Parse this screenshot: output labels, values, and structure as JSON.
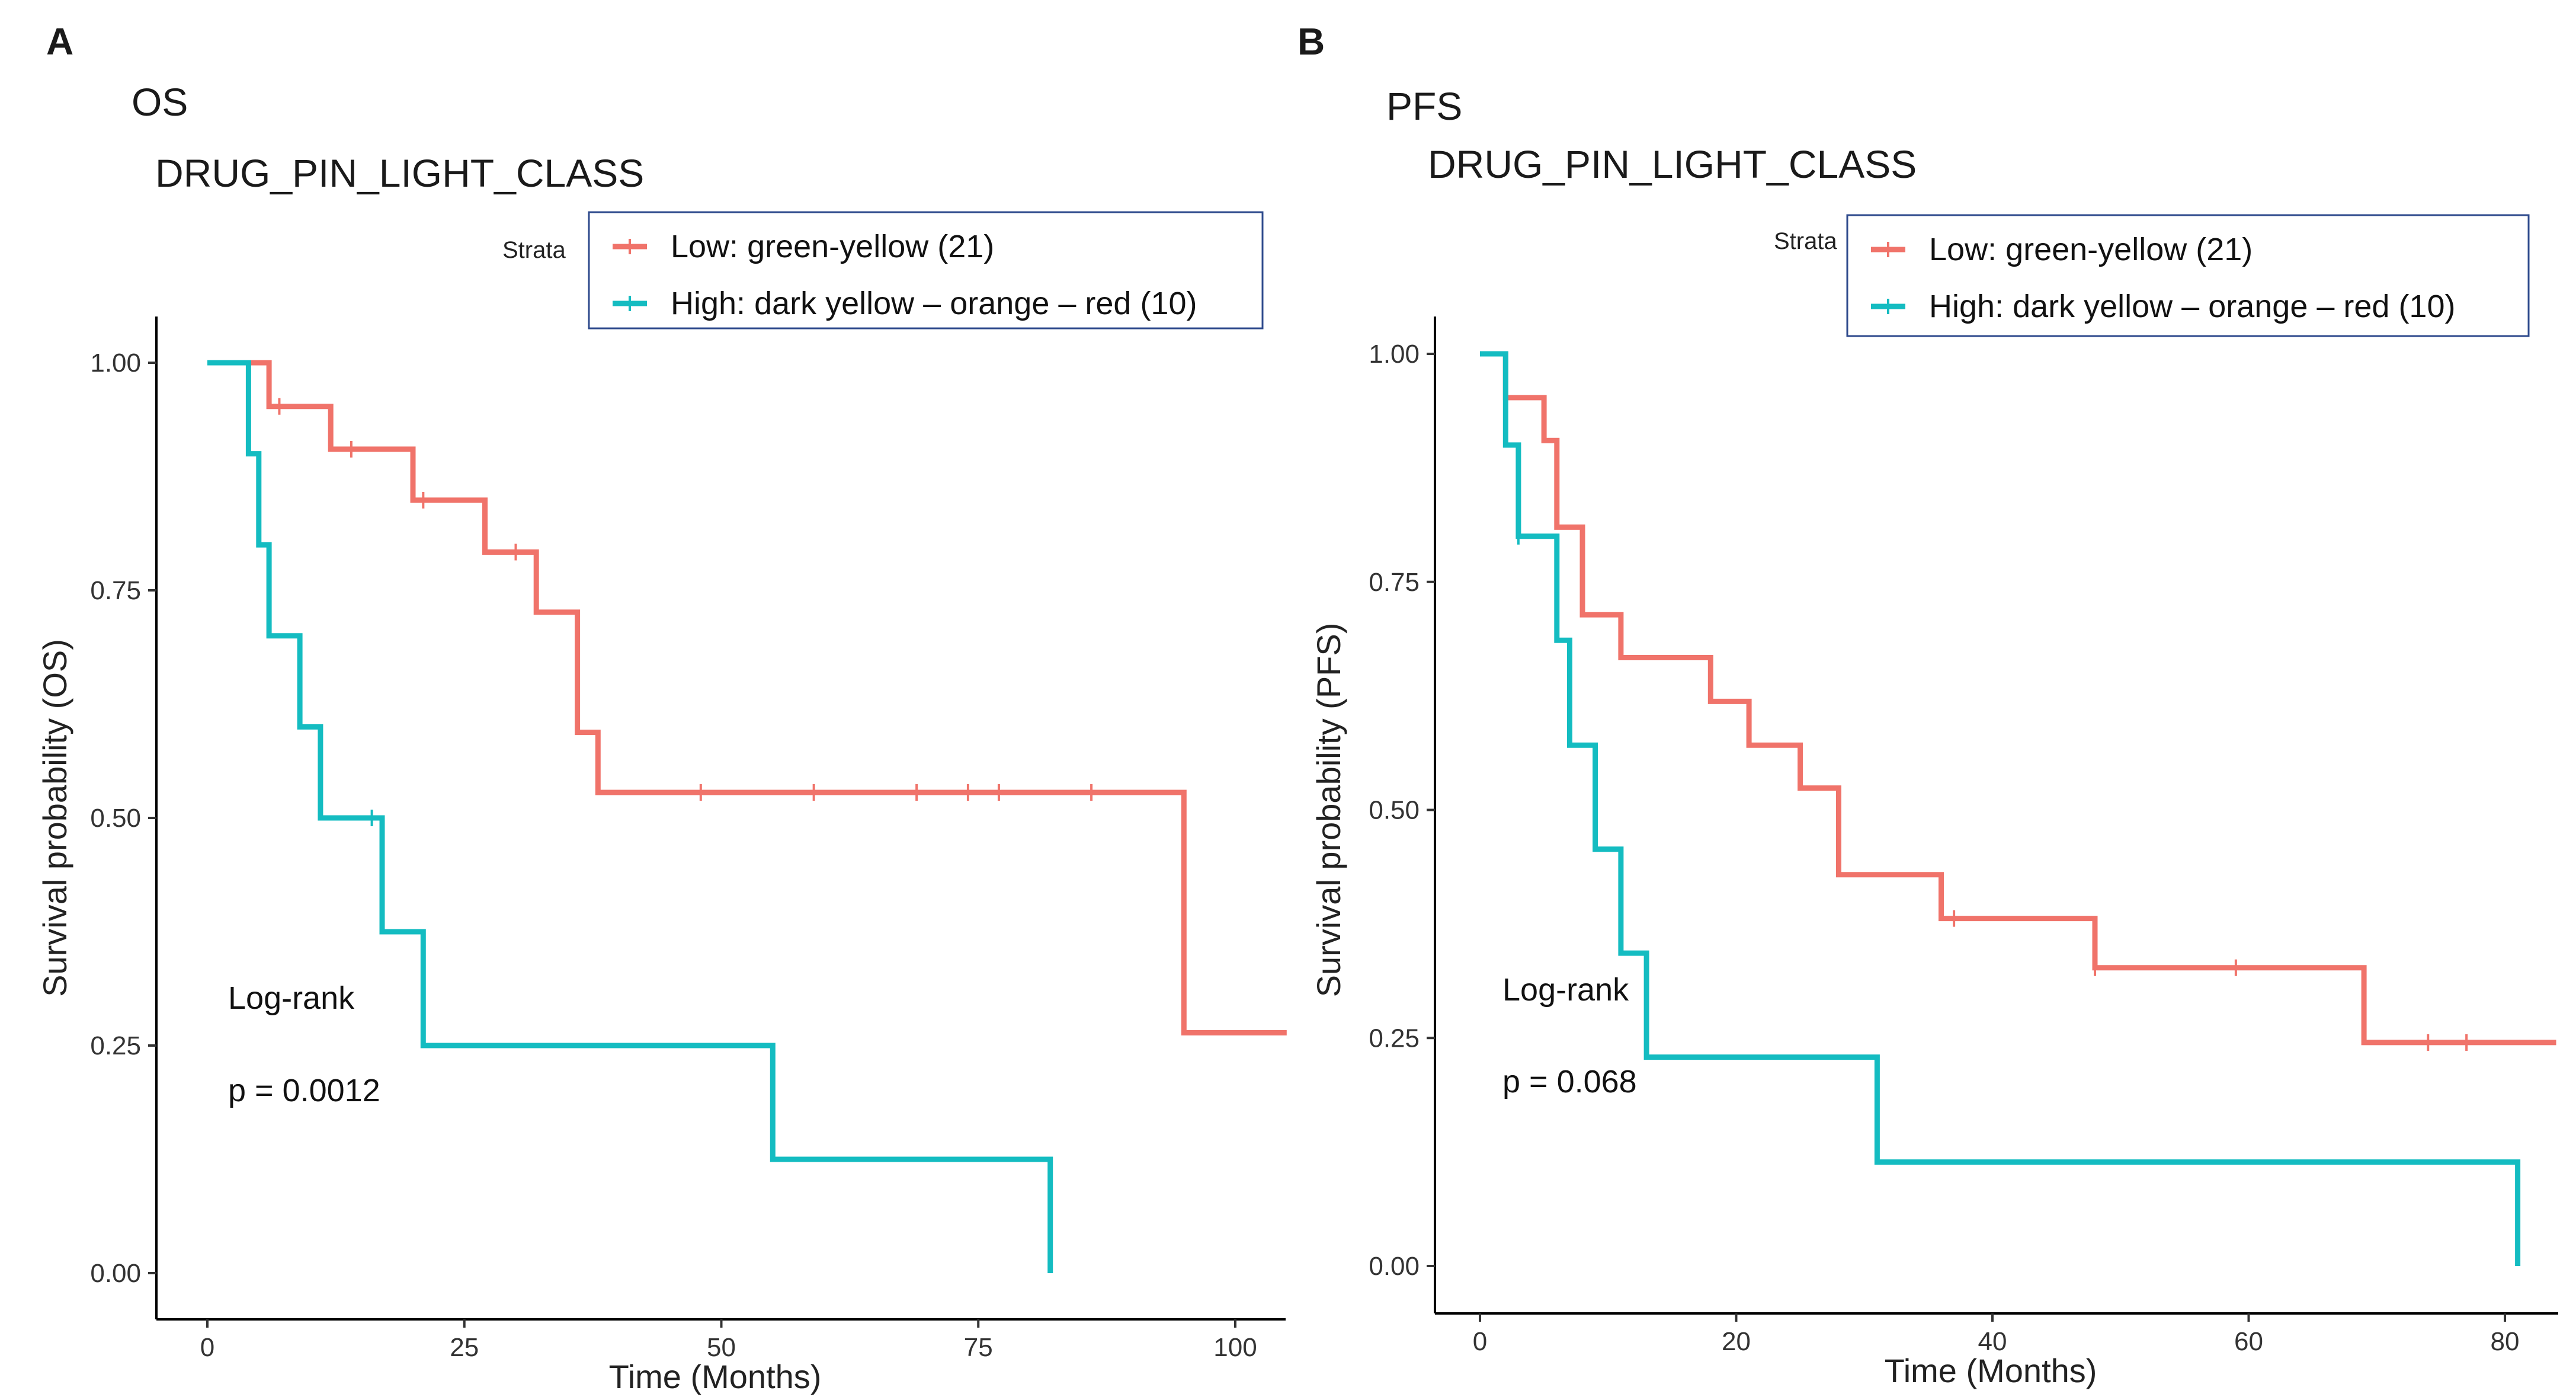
{
  "colors": {
    "low": "#F0736A",
    "high": "#14BCC1",
    "legend_border": "#2E4A8C"
  },
  "chart_data": [
    {
      "panel_letter": "A",
      "panel_tag": "OS",
      "title": "DRUG_PIN_LIGHT_CLASS",
      "type": "line",
      "step": true,
      "xlabel": "Time (Months)",
      "ylabel": "Survival probability (OS)",
      "xlim": [
        0,
        105
      ],
      "ylim": [
        0,
        1
      ],
      "xticks": [
        0,
        25,
        50,
        75,
        100
      ],
      "xtick_labels": [
        "0",
        "25",
        "50",
        "75",
        "100"
      ],
      "yticks": [
        0,
        0.25,
        0.5,
        0.75,
        1
      ],
      "ytick_labels": [
        "0.00",
        "0.25",
        "0.50",
        "0.75",
        "1.00"
      ],
      "legend_title": "Strata",
      "legend_position": "top-right",
      "grid": false,
      "series": [
        {
          "name": "Low: green-yellow (21)",
          "color_key": "low",
          "points": [
            [
              0,
              1
            ],
            [
              6,
              1
            ],
            [
              6,
              0.952
            ],
            [
              12,
              0.952
            ],
            [
              12,
              0.905
            ],
            [
              20,
              0.905
            ],
            [
              20,
              0.849
            ],
            [
              27,
              0.849
            ],
            [
              27,
              0.792
            ],
            [
              32,
              0.792
            ],
            [
              32,
              0.726
            ],
            [
              36,
              0.726
            ],
            [
              36,
              0.594
            ],
            [
              38,
              0.594
            ],
            [
              38,
              0.528
            ],
            [
              95,
              0.528
            ],
            [
              95,
              0.264
            ],
            [
              105,
              0.264
            ]
          ],
          "censored": [
            [
              7,
              0.952
            ],
            [
              14,
              0.905
            ],
            [
              21,
              0.849
            ],
            [
              30,
              0.792
            ],
            [
              48,
              0.528
            ],
            [
              59,
              0.528
            ],
            [
              69,
              0.528
            ],
            [
              74,
              0.528
            ],
            [
              77,
              0.528
            ],
            [
              86,
              0.528
            ]
          ]
        },
        {
          "name": "High: dark yellow – orange – red (10)",
          "color_key": "high",
          "points": [
            [
              0,
              1
            ],
            [
              4,
              1
            ],
            [
              4,
              0.9
            ],
            [
              5,
              0.9
            ],
            [
              5,
              0.8
            ],
            [
              6,
              0.8
            ],
            [
              6,
              0.7
            ],
            [
              9,
              0.7
            ],
            [
              9,
              0.6
            ],
            [
              11,
              0.6
            ],
            [
              11,
              0.5
            ],
            [
              17,
              0.5
            ],
            [
              17,
              0.375
            ],
            [
              21,
              0.375
            ],
            [
              21,
              0.25
            ],
            [
              55,
              0.25
            ],
            [
              55,
              0.125
            ],
            [
              82,
              0.125
            ],
            [
              82,
              0
            ]
          ],
          "censored": [
            [
              16,
              0.5
            ]
          ]
        }
      ],
      "annotations": [
        "Log-rank",
        "p = 0.0012"
      ]
    },
    {
      "panel_letter": "B",
      "panel_tag": "PFS",
      "title": "DRUG_PIN_LIGHT_CLASS",
      "type": "line",
      "step": true,
      "xlabel": "Time (Months)",
      "ylabel": "Survival probability (PFS)",
      "xlim": [
        0,
        84
      ],
      "ylim": [
        0,
        1
      ],
      "xticks": [
        0,
        20,
        40,
        60,
        80
      ],
      "xtick_labels": [
        "0",
        "20",
        "40",
        "60",
        "80"
      ],
      "yticks": [
        0,
        0.25,
        0.5,
        0.75,
        1
      ],
      "ytick_labels": [
        "0.00",
        "0.25",
        "0.50",
        "0.75",
        "1.00"
      ],
      "legend_title": "Strata",
      "legend_position": "top-right",
      "grid": false,
      "series": [
        {
          "name": "Low: green-yellow (21)",
          "color_key": "low",
          "points": [
            [
              0,
              1
            ],
            [
              2,
              1
            ],
            [
              2,
              0.952
            ],
            [
              5,
              0.952
            ],
            [
              5,
              0.905
            ],
            [
              6,
              0.905
            ],
            [
              6,
              0.81
            ],
            [
              8,
              0.81
            ],
            [
              8,
              0.714
            ],
            [
              11,
              0.714
            ],
            [
              11,
              0.667
            ],
            [
              18,
              0.667
            ],
            [
              18,
              0.619
            ],
            [
              21,
              0.619
            ],
            [
              21,
              0.571
            ],
            [
              25,
              0.571
            ],
            [
              25,
              0.524
            ],
            [
              28,
              0.524
            ],
            [
              28,
              0.429
            ],
            [
              36,
              0.429
            ],
            [
              36,
              0.381
            ],
            [
              48,
              0.381
            ],
            [
              48,
              0.327
            ],
            [
              69,
              0.327
            ],
            [
              69,
              0.245
            ],
            [
              84,
              0.245
            ]
          ],
          "censored": [
            [
              37,
              0.381
            ],
            [
              48,
              0.327
            ],
            [
              59,
              0.327
            ],
            [
              74,
              0.245
            ],
            [
              77,
              0.245
            ]
          ]
        },
        {
          "name": "High: dark yellow – orange – red (10)",
          "color_key": "high",
          "points": [
            [
              0,
              1
            ],
            [
              2,
              1
            ],
            [
              2,
              0.9
            ],
            [
              3,
              0.9
            ],
            [
              3,
              0.8
            ],
            [
              6,
              0.8
            ],
            [
              6,
              0.686
            ],
            [
              7,
              0.686
            ],
            [
              7,
              0.571
            ],
            [
              9,
              0.571
            ],
            [
              9,
              0.457
            ],
            [
              11,
              0.457
            ],
            [
              11,
              0.343
            ],
            [
              13,
              0.343
            ],
            [
              13,
              0.229
            ],
            [
              31,
              0.229
            ],
            [
              31,
              0.114
            ],
            [
              81,
              0.114
            ],
            [
              81,
              0
            ]
          ],
          "censored": [
            [
              3,
              0.8
            ]
          ]
        }
      ],
      "annotations": [
        "Log-rank",
        "p = 0.068"
      ]
    }
  ]
}
